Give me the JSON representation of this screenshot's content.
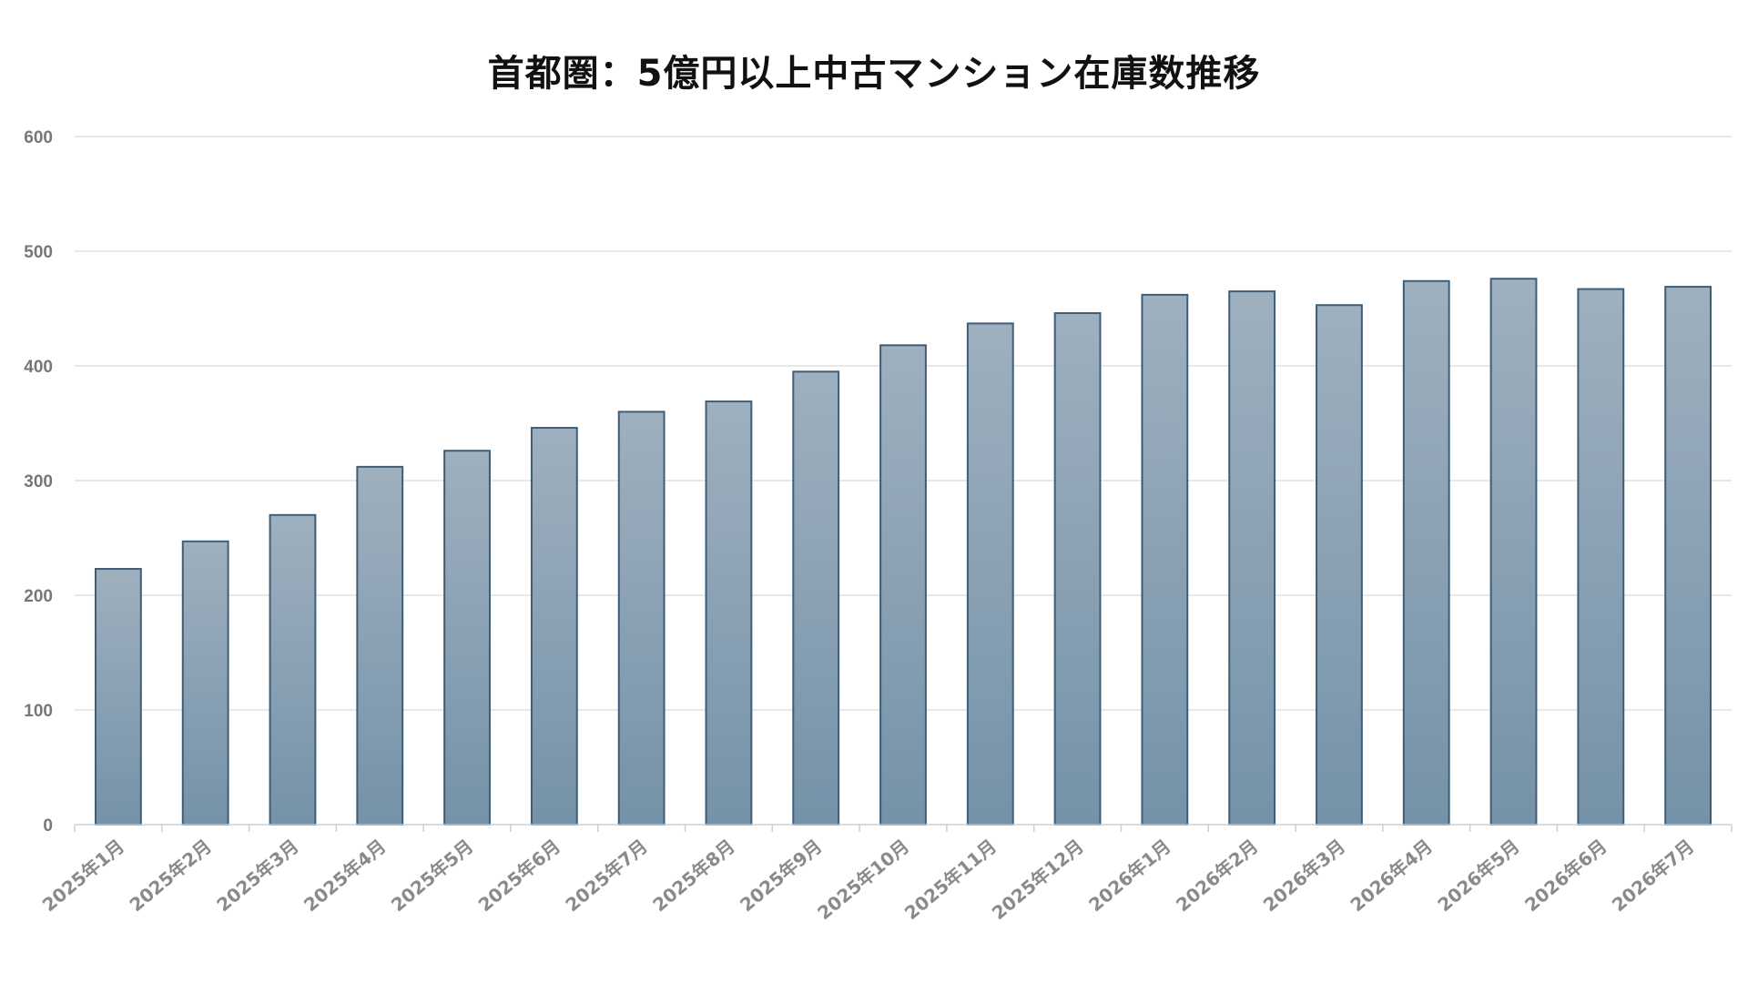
{
  "chart_data": {
    "type": "bar",
    "title": "首都圏：5億円以上中古マンション在庫数推移",
    "xlabel": "",
    "ylabel": "",
    "ylim": [
      0,
      600
    ],
    "yticks": [
      0,
      100,
      200,
      300,
      400,
      500,
      600
    ],
    "grid": true,
    "legend": "none",
    "categories": [
      "2025年1月",
      "2025年2月",
      "2025年3月",
      "2025年4月",
      "2025年5月",
      "2025年6月",
      "2025年7月",
      "2025年8月",
      "2025年9月",
      "2025年10月",
      "2025年11月",
      "2025年12月",
      "2026年1月",
      "2026年2月",
      "2026年3月",
      "2026年4月",
      "2026年5月",
      "2026年6月",
      "2026年7月"
    ],
    "values": [
      223,
      247,
      270,
      312,
      326,
      346,
      360,
      369,
      395,
      418,
      437,
      446,
      462,
      465,
      453,
      474,
      476,
      467,
      469
    ],
    "colors": {
      "bar_top": "#9fb0bf",
      "bar_bottom": "#7592a8",
      "bar_border": "#3d5e78",
      "grid": "#d9d9d9",
      "tick_text": "#777777"
    }
  }
}
